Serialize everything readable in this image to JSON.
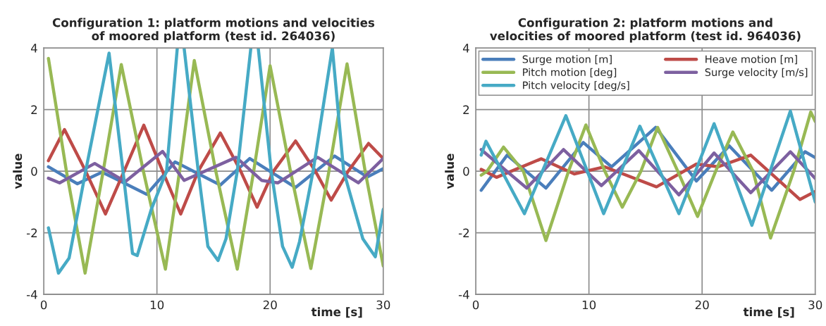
{
  "chart_data": [
    {
      "type": "line",
      "title": "Configuration 1: platform motions and velocities\nof moored platform (test id. 264036)",
      "xlabel": "time [s]",
      "ylabel": "value",
      "xlim": [
        0,
        30
      ],
      "xticks": [
        0,
        10,
        20,
        30
      ],
      "ylim": [
        -4,
        4
      ],
      "yticks": [
        -4,
        -2,
        0,
        2,
        4
      ],
      "grid": true,
      "legend": false,
      "series": [
        {
          "color": "#4a7ebb",
          "x": [
            0.41,
            2.97,
            5.15,
            9.1,
            11.6,
            15.6,
            18.2,
            22.25,
            25.7,
            28.6,
            30
          ],
          "values": [
            0.14,
            -0.41,
            -0.03,
            -0.75,
            0.3,
            -0.45,
            0.41,
            -0.53,
            0.49,
            -0.19,
            0.08
          ]
        },
        {
          "color": "#be4b48",
          "x": [
            0.41,
            1.83,
            3.7,
            5.45,
            7.1,
            8.84,
            10.5,
            12.1,
            13.65,
            15.6,
            17.4,
            18.85,
            20.3,
            22.25,
            24.0,
            25.4,
            26.9,
            28.7,
            30
          ],
          "values": [
            0.34,
            1.35,
            0,
            -1.39,
            0,
            1.49,
            0,
            -1.39,
            0,
            1.24,
            0,
            -1.17,
            0,
            0.98,
            0,
            -0.94,
            0,
            0.9,
            0.41
          ]
        },
        {
          "color": "#98b954",
          "x": [
            0.41,
            2.0,
            3.65,
            5.25,
            6.85,
            8.8,
            10.75,
            12.0,
            13.3,
            15.2,
            17.1,
            18.55,
            20.0,
            21.8,
            23.6,
            25.2,
            26.8,
            28.4,
            30
          ],
          "values": [
            3.66,
            0,
            -3.31,
            0,
            3.46,
            0,
            -3.18,
            0,
            3.59,
            0,
            -3.18,
            0,
            3.42,
            0,
            -3.16,
            0,
            3.48,
            0,
            -3.08
          ]
        },
        {
          "color": "#7d60a0",
          "x": [
            0.41,
            1.4,
            4.5,
            7.2,
            10.5,
            12.4,
            17.0,
            19.25,
            20.7,
            24.2,
            27.8,
            30
          ],
          "values": [
            -0.23,
            -0.38,
            0.25,
            -0.34,
            0.64,
            -0.3,
            0.45,
            -0.3,
            -0.38,
            0.45,
            -0.38,
            0.41
          ]
        },
        {
          "color": "#46aac5",
          "x": [
            0.41,
            1.3,
            2.24,
            3.7,
            5.77,
            7.0,
            7.84,
            8.26,
            9.5,
            10.85,
            11.8,
            12.1,
            12.4,
            13.65,
            14.5,
            15.4,
            16.1,
            17.1,
            18.3,
            18.6,
            18.95,
            20.1,
            21.1,
            21.95,
            22.6,
            23.8,
            25.5,
            26.5,
            28.2,
            29.3,
            30
          ],
          "values": [
            -1.84,
            -3.31,
            -2.82,
            0,
            3.83,
            0,
            -2.67,
            -2.74,
            -1.24,
            0,
            4,
            null,
            4,
            0,
            -2.44,
            -2.9,
            -2.2,
            0,
            4,
            null,
            4,
            0,
            -2.44,
            -3.12,
            -2.29,
            0,
            4,
            0,
            -2.2,
            -2.78,
            -1.24
          ]
        }
      ]
    },
    {
      "type": "line",
      "title": "Configuration 2: platform motions and\nvelocities of moored platform (test id. 964036)",
      "xlabel": "time [s]",
      "ylabel": "value",
      "xlim": [
        0,
        30
      ],
      "xticks": [
        0,
        10,
        20,
        30
      ],
      "ylim": [
        -4,
        4
      ],
      "yticks": [
        -4,
        -2,
        0,
        2,
        4
      ],
      "grid": true,
      "legend": "top",
      "series": [
        {
          "name": "Surge motion [m]",
          "color": "#4a7ebb",
          "x": [
            0.48,
            2.77,
            6.2,
            9.5,
            12.0,
            15.9,
            19.5,
            22.4,
            26.15,
            29.1,
            30
          ],
          "values": [
            -0.62,
            0.52,
            -0.55,
            0.93,
            0.14,
            1.42,
            -0.32,
            0.82,
            -0.62,
            0.63,
            0.44
          ]
        },
        {
          "name": "Heave motion [m]",
          "color": "#be4b48",
          "x": [
            0.48,
            1.83,
            5.78,
            8.7,
            11.4,
            15.97,
            19.5,
            21.4,
            24.3,
            28.65,
            30
          ],
          "values": [
            0.06,
            -0.2,
            0.4,
            -0.09,
            0.14,
            -0.51,
            0.23,
            0.14,
            0.52,
            -0.92,
            -0.66
          ]
        },
        {
          "name": "Pitch motion [deg]",
          "color": "#98b954",
          "x": [
            0.48,
            1.0,
            2.45,
            4.2,
            6.2,
            8.2,
            9.73,
            11.4,
            12.95,
            14.6,
            16.07,
            17.85,
            19.6,
            21.2,
            22.72,
            24.5,
            26.05,
            28.1,
            29.6,
            30
          ],
          "values": [
            -0.13,
            0,
            0.78,
            0,
            -2.25,
            0,
            1.5,
            0,
            -1.17,
            0,
            1.42,
            0,
            -1.47,
            0,
            1.27,
            0,
            -2.17,
            0,
            1.92,
            1.61
          ]
        },
        {
          "name": "Surge velocity [m/s]",
          "color": "#7d60a0",
          "x": [
            0.48,
            4.5,
            7.75,
            11.1,
            14.4,
            17.95,
            21.06,
            24.3,
            27.8,
            30
          ],
          "values": [
            0.7,
            -0.55,
            0.7,
            -0.47,
            0.67,
            -0.77,
            0.59,
            -0.7,
            0.63,
            -0.24
          ]
        },
        {
          "name": "Pitch velocity [deg/s]",
          "color": "#46aac5",
          "x": [
            0.48,
            0.9,
            4.3,
            7.96,
            11.3,
            14.5,
            17.95,
            21.06,
            24.4,
            27.8,
            30
          ],
          "values": [
            0.52,
            0.97,
            -1.38,
            1.8,
            -1.38,
            1.46,
            -1.38,
            1.54,
            -1.76,
            1.95,
            -1.0
          ]
        }
      ]
    }
  ]
}
